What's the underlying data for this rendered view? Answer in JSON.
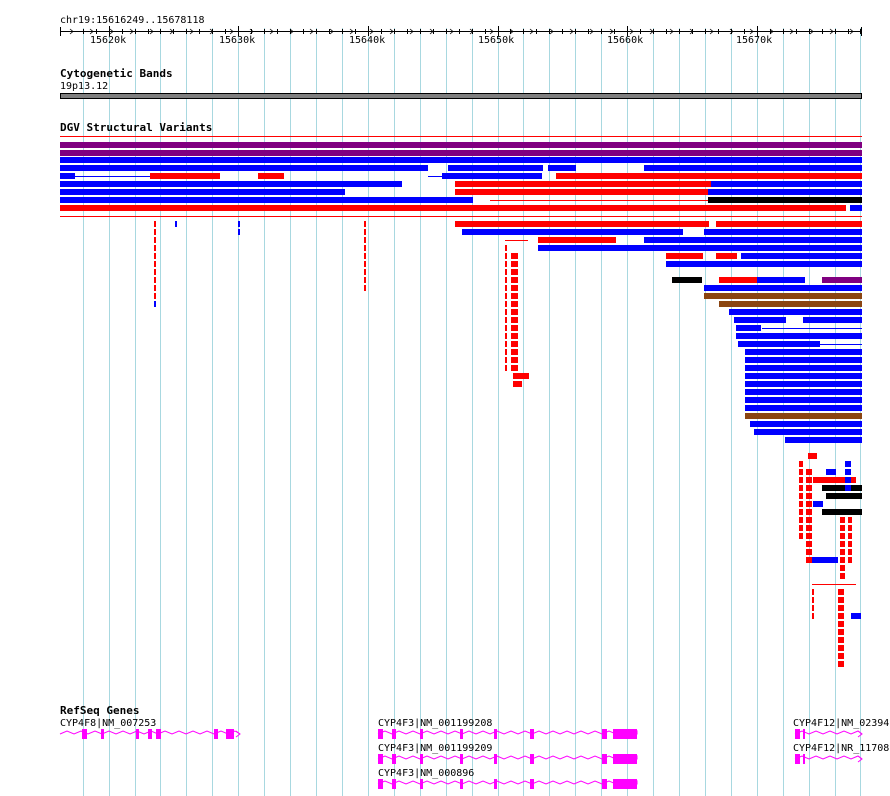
{
  "ruler": {
    "range_label": "chr19:15616249..15678118",
    "start": 15616249,
    "end": 15678118,
    "ticks": [
      {
        "value": 15620000,
        "label": "15620k"
      },
      {
        "value": 15630000,
        "label": "15630k"
      },
      {
        "value": 15640000,
        "label": "15640k"
      },
      {
        "value": 15650000,
        "label": "15650k"
      },
      {
        "value": 15660000,
        "label": "15660k"
      },
      {
        "value": 15670000,
        "label": "15670k"
      }
    ]
  },
  "tracks": {
    "cytoband": {
      "title": "Cytogenetic Bands",
      "band_label": "19p13.12",
      "band_color": "#7f7f7f"
    },
    "dgv": {
      "title": "DGV Structural Variants"
    },
    "refseq": {
      "title": "RefSeq Genes"
    }
  },
  "genes": [
    {
      "label": "CYP4F8|NM_007253"
    },
    {
      "label": "CYP4F3|NM_001199208"
    },
    {
      "label": "CYP4F3|NM_001199209"
    },
    {
      "label": "CYP4F3|NM_000896"
    },
    {
      "label": "CYP4F12|NM_02394"
    },
    {
      "label": "CYP4F12|NR_11708"
    }
  ],
  "colors": {
    "gridline": "#a8d8e0",
    "loss": "#ff0000",
    "gain": "#0000ff",
    "both": "#800080",
    "inversion": "#000000",
    "complex": "#8b4513",
    "gene": "#ff00ff"
  }
}
